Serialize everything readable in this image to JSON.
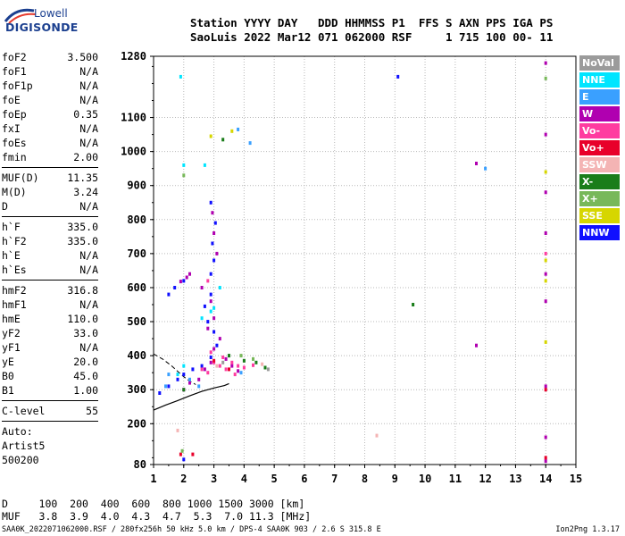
{
  "logo": {
    "line1": "Lowell",
    "line2": "DIGISONDE"
  },
  "header": {
    "line1": "Station YYYY DAY   DDD HHMMSS P1  FFS S AXN PPS IGA PS",
    "line2": "SaoLuis 2022 Mar12 071 062000 RSF     1 715 100 00- 11"
  },
  "params": {
    "g1": [
      {
        "k": "foF2",
        "v": "3.500"
      },
      {
        "k": "foF1",
        "v": "N/A"
      },
      {
        "k": "foF1p",
        "v": "N/A"
      },
      {
        "k": "foE",
        "v": "N/A"
      },
      {
        "k": "foEp",
        "v": "0.35"
      },
      {
        "k": "fxI",
        "v": "N/A"
      },
      {
        "k": "foEs",
        "v": "N/A"
      },
      {
        "k": "fmin",
        "v": "2.00"
      }
    ],
    "g2": [
      {
        "k": "MUF(D)",
        "v": "11.35"
      },
      {
        "k": "M(D)",
        "v": "3.24"
      },
      {
        "k": "D",
        "v": "N/A"
      }
    ],
    "g3": [
      {
        "k": "h`F",
        "v": "335.0"
      },
      {
        "k": "h`F2",
        "v": "335.0"
      },
      {
        "k": "h`E",
        "v": "N/A"
      },
      {
        "k": "h`Es",
        "v": "N/A"
      }
    ],
    "g4": [
      {
        "k": "hmF2",
        "v": "316.8"
      },
      {
        "k": "hmF1",
        "v": "N/A"
      },
      {
        "k": "hmE",
        "v": "110.0"
      },
      {
        "k": "yF2",
        "v": "33.0"
      },
      {
        "k": "yF1",
        "v": "N/A"
      },
      {
        "k": "yE",
        "v": "20.0"
      },
      {
        "k": "B0",
        "v": "45.0"
      },
      {
        "k": "B1",
        "v": "1.00"
      }
    ],
    "g5": [
      {
        "k": "C-level",
        "v": "55"
      }
    ],
    "auto": [
      "Auto:",
      "Artist5",
      "500200"
    ]
  },
  "legend": [
    {
      "label": "NoVal",
      "color": "#9b9b9b"
    },
    {
      "label": "NNE",
      "color": "#00e5ff"
    },
    {
      "label": "E",
      "color": "#3aa0ff"
    },
    {
      "label": "W",
      "color": "#b000b0"
    },
    {
      "label": "Vo-",
      "color": "#ff3ca0"
    },
    {
      "label": "Vo+",
      "color": "#e8002a"
    },
    {
      "label": "SSW",
      "color": "#f4b4b4"
    },
    {
      "label": "X-",
      "color": "#1a7d1a"
    },
    {
      "label": "X+",
      "color": "#78b85a"
    },
    {
      "label": "SSE",
      "color": "#d6d600"
    },
    {
      "label": "NNW",
      "color": "#1010ff"
    }
  ],
  "chart_data": {
    "type": "scatter",
    "title": "",
    "xlabel": "",
    "ylabel": "",
    "xlim": [
      1,
      15
    ],
    "ylim": [
      80,
      1280
    ],
    "xticks": [
      1,
      2,
      3,
      4,
      5,
      6,
      7,
      8,
      9,
      10,
      11,
      12,
      13,
      14,
      15
    ],
    "yticks": [
      80,
      200,
      300,
      400,
      500,
      600,
      700,
      800,
      900,
      1000,
      1100,
      1280
    ],
    "grid": true,
    "series": [
      {
        "color_ref": "W",
        "points": [
          [
            2.0,
            300
          ],
          [
            2.2,
            320
          ],
          [
            2.5,
            330
          ],
          [
            2.7,
            360
          ],
          [
            2.9,
            380
          ],
          [
            3.0,
            420
          ],
          [
            3.2,
            450
          ],
          [
            3.4,
            390
          ],
          [
            3.6,
            370
          ],
          [
            3.8,
            355
          ],
          [
            2.8,
            480
          ],
          [
            3.0,
            510
          ],
          [
            2.9,
            560
          ],
          [
            2.6,
            600
          ],
          [
            1.9,
            618
          ],
          [
            2.1,
            630
          ],
          [
            2.2,
            640
          ],
          [
            3.0,
            760
          ],
          [
            2.95,
            820
          ],
          [
            3.1,
            700
          ],
          [
            14.0,
            1260
          ],
          [
            14.0,
            1050
          ],
          [
            14.0,
            880
          ],
          [
            14.0,
            760
          ],
          [
            14.0,
            640
          ],
          [
            14.0,
            560
          ],
          [
            14.0,
            310
          ],
          [
            14.0,
            160
          ],
          [
            14.0,
            90
          ],
          [
            11.7,
            965
          ],
          [
            11.7,
            430
          ]
        ]
      },
      {
        "color_ref": "NNW",
        "points": [
          [
            1.2,
            290
          ],
          [
            1.5,
            310
          ],
          [
            1.8,
            330
          ],
          [
            2.0,
            345
          ],
          [
            2.3,
            360
          ],
          [
            2.6,
            370
          ],
          [
            2.9,
            395
          ],
          [
            3.1,
            430
          ],
          [
            3.0,
            470
          ],
          [
            2.8,
            500
          ],
          [
            2.7,
            545
          ],
          [
            2.9,
            580
          ],
          [
            1.5,
            580
          ],
          [
            1.7,
            600
          ],
          [
            2.0,
            620
          ],
          [
            2.9,
            640
          ],
          [
            3.0,
            680
          ],
          [
            2.95,
            730
          ],
          [
            3.05,
            790
          ],
          [
            2.9,
            850
          ],
          [
            9.1,
            1220
          ],
          [
            2.0,
            95
          ]
        ]
      },
      {
        "color_ref": "Vo-",
        "points": [
          [
            2.6,
            360
          ],
          [
            2.8,
            350
          ],
          [
            3.0,
            380
          ],
          [
            3.2,
            370
          ],
          [
            3.4,
            360
          ],
          [
            3.6,
            380
          ],
          [
            3.8,
            370
          ],
          [
            4.0,
            365
          ],
          [
            4.3,
            372
          ],
          [
            2.9,
            410
          ],
          [
            3.3,
            395
          ],
          [
            3.7,
            345
          ],
          [
            2.8,
            620
          ],
          [
            14.0,
            700
          ]
        ]
      },
      {
        "color_ref": "NNE",
        "points": [
          [
            1.9,
            1220
          ],
          [
            2.0,
            960
          ],
          [
            2.7,
            960
          ],
          [
            2.9,
            530
          ],
          [
            3.0,
            540
          ],
          [
            3.2,
            600
          ],
          [
            2.0,
            370
          ],
          [
            1.8,
            345
          ],
          [
            2.6,
            510
          ]
        ]
      },
      {
        "color_ref": "E",
        "points": [
          [
            1.5,
            345
          ],
          [
            2.2,
            330
          ],
          [
            2.5,
            310
          ],
          [
            3.9,
            350
          ],
          [
            4.2,
            1025
          ],
          [
            3.8,
            1065
          ],
          [
            1.4,
            310
          ],
          [
            12.0,
            950
          ]
        ]
      },
      {
        "color_ref": "Vo+",
        "points": [
          [
            3.0,
            385
          ],
          [
            3.5,
            360
          ],
          [
            14.0,
            300
          ],
          [
            1.9,
            110
          ],
          [
            2.3,
            110
          ],
          [
            14.0,
            100
          ]
        ]
      },
      {
        "color_ref": "X-",
        "points": [
          [
            4.0,
            385
          ],
          [
            4.4,
            380
          ],
          [
            4.7,
            365
          ],
          [
            3.5,
            400
          ],
          [
            2.0,
            300
          ],
          [
            9.6,
            550
          ],
          [
            3.3,
            1035
          ]
        ]
      },
      {
        "color_ref": "X+",
        "points": [
          [
            4.3,
            390
          ],
          [
            3.9,
            400
          ],
          [
            14.0,
            1215
          ],
          [
            2.0,
            930
          ],
          [
            1.95,
            120
          ]
        ]
      },
      {
        "color_ref": "SSE",
        "points": [
          [
            14.0,
            940
          ],
          [
            14.0,
            680
          ],
          [
            14.0,
            620
          ],
          [
            14.0,
            440
          ],
          [
            3.6,
            1060
          ],
          [
            2.9,
            1045
          ]
        ]
      },
      {
        "color_ref": "SSW",
        "points": [
          [
            4.6,
            375
          ],
          [
            3.1,
            370
          ],
          [
            8.4,
            165
          ],
          [
            1.8,
            180
          ]
        ]
      },
      {
        "color_ref": "NoVal",
        "points": [
          [
            4.8,
            360
          ],
          [
            3.3,
            380
          ]
        ]
      }
    ],
    "profile_curve": [
      [
        1.0,
        240
      ],
      [
        1.4,
        255
      ],
      [
        1.8,
        268
      ],
      [
        2.2,
        282
      ],
      [
        2.6,
        295
      ],
      [
        3.0,
        305
      ],
      [
        3.35,
        312
      ],
      [
        3.5,
        318
      ]
    ],
    "dashed_trace": [
      [
        1.0,
        405
      ],
      [
        1.3,
        390
      ],
      [
        1.6,
        370
      ],
      [
        1.85,
        350
      ],
      [
        2.0,
        338
      ],
      [
        2.2,
        325
      ],
      [
        2.4,
        315
      ]
    ]
  },
  "footer": {
    "line1": "D     100  200  400  600  800 1000 1500 3000 [km]",
    "line2": "MUF   3.8  3.9  4.0  4.3  4.7  5.3  7.0 11.3 [MHz]",
    "file_info": "SAA0K_2022071062000.RSF / 280fx256h 50 kHz 5.0 km / DPS-4 SAA0K 903 / 2.6 S 315.8 E",
    "version": "Ion2Png 1.3.17"
  }
}
